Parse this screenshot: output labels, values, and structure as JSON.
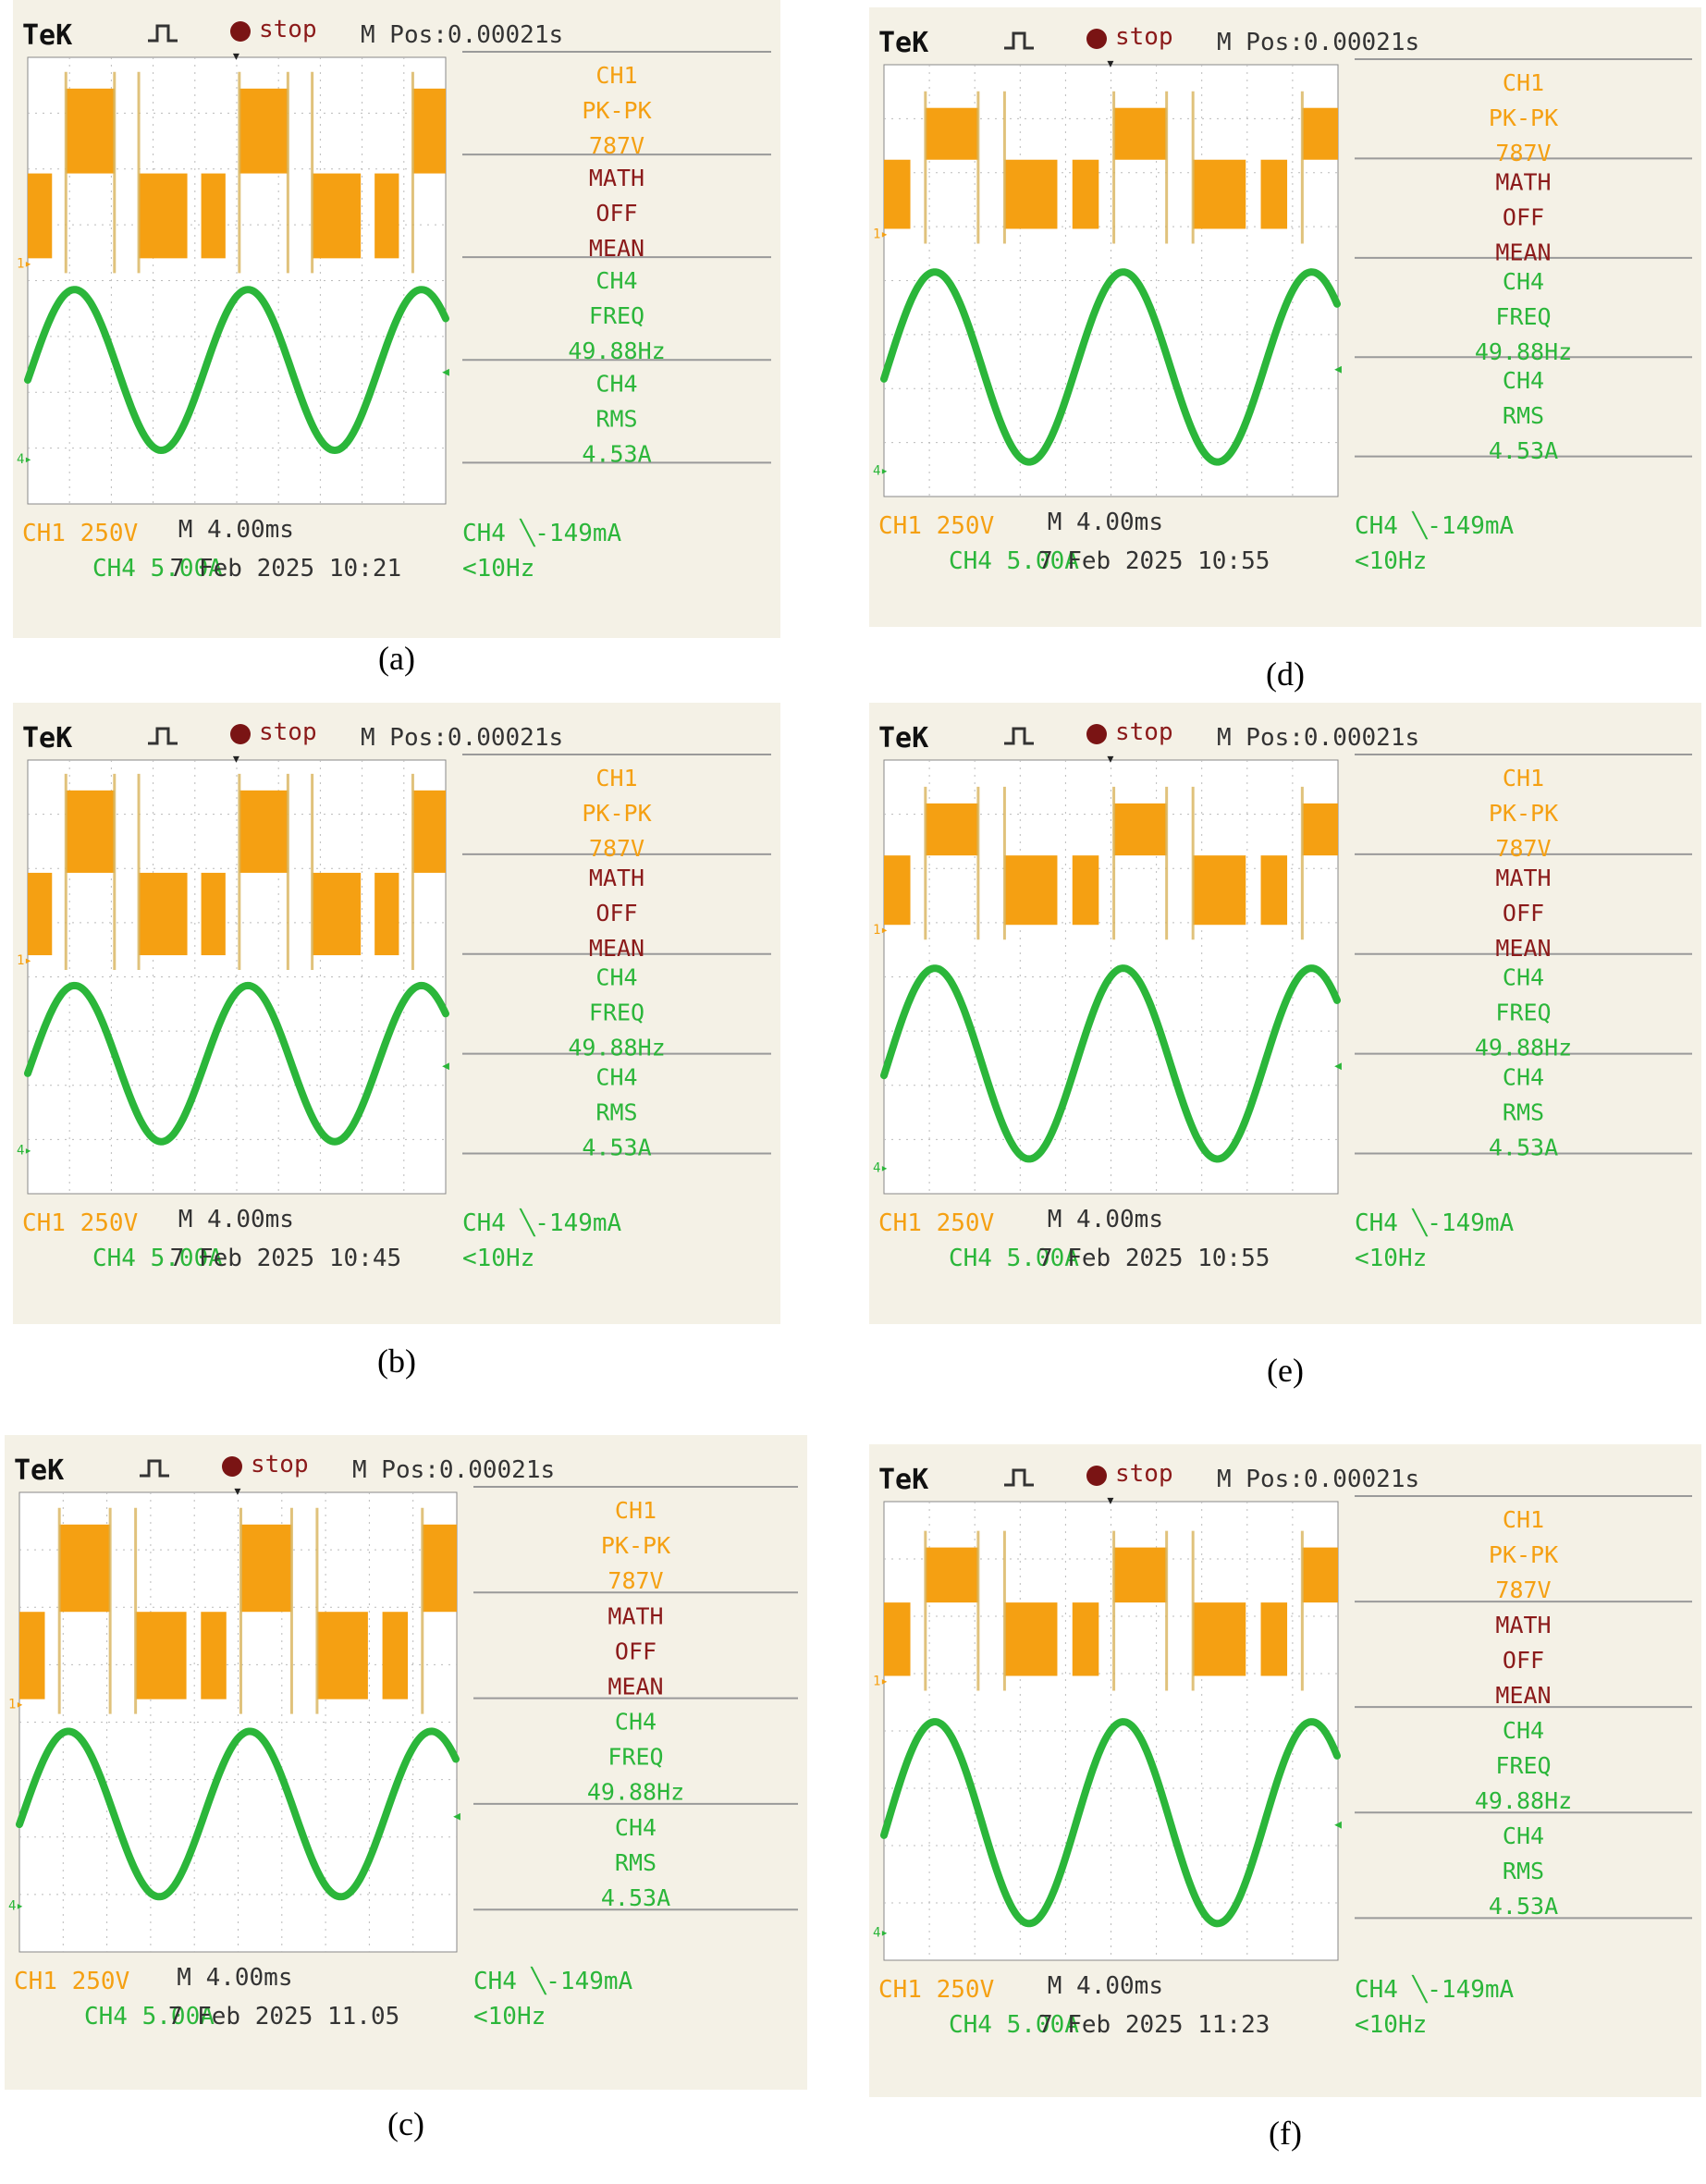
{
  "colors": {
    "ch1": "#f5a012",
    "ch4": "#2bb63a",
    "math": "#8b1a1a",
    "label_text": "#2bb63a",
    "background": "#f4f1e6"
  },
  "common": {
    "brand": "TeK",
    "trigger_icon": "pulse-trigger-icon",
    "stop_label": "stop",
    "mpos": "M Pos:0.00021s",
    "ch1_label": "CH1",
    "ch1_meas": "PK-PK",
    "ch1_val": "787V",
    "math_label": "MATH",
    "math_state": "OFF",
    "math_meas": "MEAN",
    "ch4_label": "CH4",
    "freq_label": "FREQ",
    "freq_val": "49.88Hz",
    "rms_label": "RMS",
    "rms_val": "4.53A",
    "ch1_scale": "CH1 250V",
    "timebase": "M 4.00ms",
    "trigger_setting": "CH4 ╲-149mA",
    "ch4_scale": "CH4 5.00A",
    "freq_low": "<10Hz"
  },
  "panels": [
    {
      "id": "a",
      "caption": "(a)",
      "date": "7 Feb 2025 10:21"
    },
    {
      "id": "b",
      "caption": "(b)",
      "date": "7 Feb 2025 10:45"
    },
    {
      "id": "c",
      "caption": "(c)",
      "date": "7 Feb 2025 11.05"
    },
    {
      "id": "d",
      "caption": "(d)",
      "date": "7 Feb 2025 10:55"
    },
    {
      "id": "e",
      "caption": "(e)",
      "date": "7 Feb 2025 10:55"
    },
    {
      "id": "f",
      "caption": "(f)",
      "date": "7 Feb 2025 11:23"
    }
  ],
  "chart_data": [
    {
      "panel": "a",
      "type": "line",
      "series": [
        {
          "name": "CH1",
          "kind": "three-level quasi-square voltage",
          "pk_pk_V": 787,
          "scale_V_per_div": 250
        },
        {
          "name": "CH4",
          "kind": "sinusoidal current",
          "freq_Hz": 49.88,
          "rms_A": 4.53,
          "scale_A_per_div": 5.0
        }
      ],
      "timebase_ms_per_div": 4.0
    },
    {
      "panel": "b",
      "type": "line",
      "series": [
        {
          "name": "CH1",
          "kind": "three-level quasi-square voltage",
          "pk_pk_V": 787,
          "scale_V_per_div": 250
        },
        {
          "name": "CH4",
          "kind": "sinusoidal current",
          "freq_Hz": 49.88,
          "rms_A": 4.53,
          "scale_A_per_div": 5.0
        }
      ],
      "timebase_ms_per_div": 4.0
    },
    {
      "panel": "c",
      "type": "line",
      "series": [
        {
          "name": "CH1",
          "kind": "three-level quasi-square voltage",
          "pk_pk_V": 787,
          "scale_V_per_div": 250
        },
        {
          "name": "CH4",
          "kind": "sinusoidal current",
          "freq_Hz": 49.88,
          "rms_A": 4.53,
          "scale_A_per_div": 5.0
        }
      ],
      "timebase_ms_per_div": 4.0
    },
    {
      "panel": "d",
      "type": "line",
      "series": [
        {
          "name": "CH1",
          "kind": "three-level quasi-square voltage",
          "pk_pk_V": 787,
          "scale_V_per_div": 250
        },
        {
          "name": "CH4",
          "kind": "sinusoidal current",
          "freq_Hz": 49.88,
          "rms_A": 4.53,
          "scale_A_per_div": 5.0
        }
      ],
      "timebase_ms_per_div": 4.0
    },
    {
      "panel": "e",
      "type": "line",
      "series": [
        {
          "name": "CH1",
          "kind": "three-level quasi-square voltage",
          "pk_pk_V": 787,
          "scale_V_per_div": 250
        },
        {
          "name": "CH4",
          "kind": "sinusoidal current",
          "freq_Hz": 49.88,
          "rms_A": 4.53,
          "scale_A_per_div": 5.0
        }
      ],
      "timebase_ms_per_div": 4.0
    },
    {
      "panel": "f",
      "type": "line",
      "series": [
        {
          "name": "CH1",
          "kind": "three-level quasi-square voltage",
          "pk_pk_V": 787,
          "scale_V_per_div": 250
        },
        {
          "name": "CH4",
          "kind": "sinusoidal current",
          "freq_Hz": 49.88,
          "rms_A": 4.53,
          "scale_A_per_div": 5.0
        }
      ],
      "timebase_ms_per_div": 4.0
    }
  ]
}
